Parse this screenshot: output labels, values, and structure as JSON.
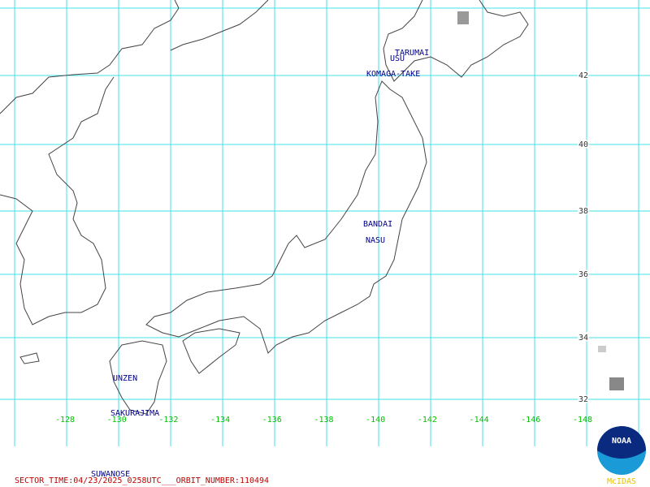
{
  "volcanoes": [
    "TARUMAI",
    "USU",
    "KOMAGA-TAKE",
    "BANDAI",
    "NASU",
    "UNZEN",
    "SAKURAJIMA",
    "SUWANOSE"
  ],
  "latitude_labels": [
    "42",
    "40",
    "38",
    "36",
    "34",
    "32"
  ],
  "longitude_labels": [
    "-128",
    "-130",
    "-132",
    "-134",
    "-136",
    "-138",
    "-140",
    "-142",
    "-144",
    "-146",
    "-148"
  ],
  "footer": {
    "sector_time": "SECTOR_TIME:04/23/2025_0258UTC___ORBIT_NUMBER:110494",
    "logo": "NOAA",
    "credit": "McIDAS"
  }
}
